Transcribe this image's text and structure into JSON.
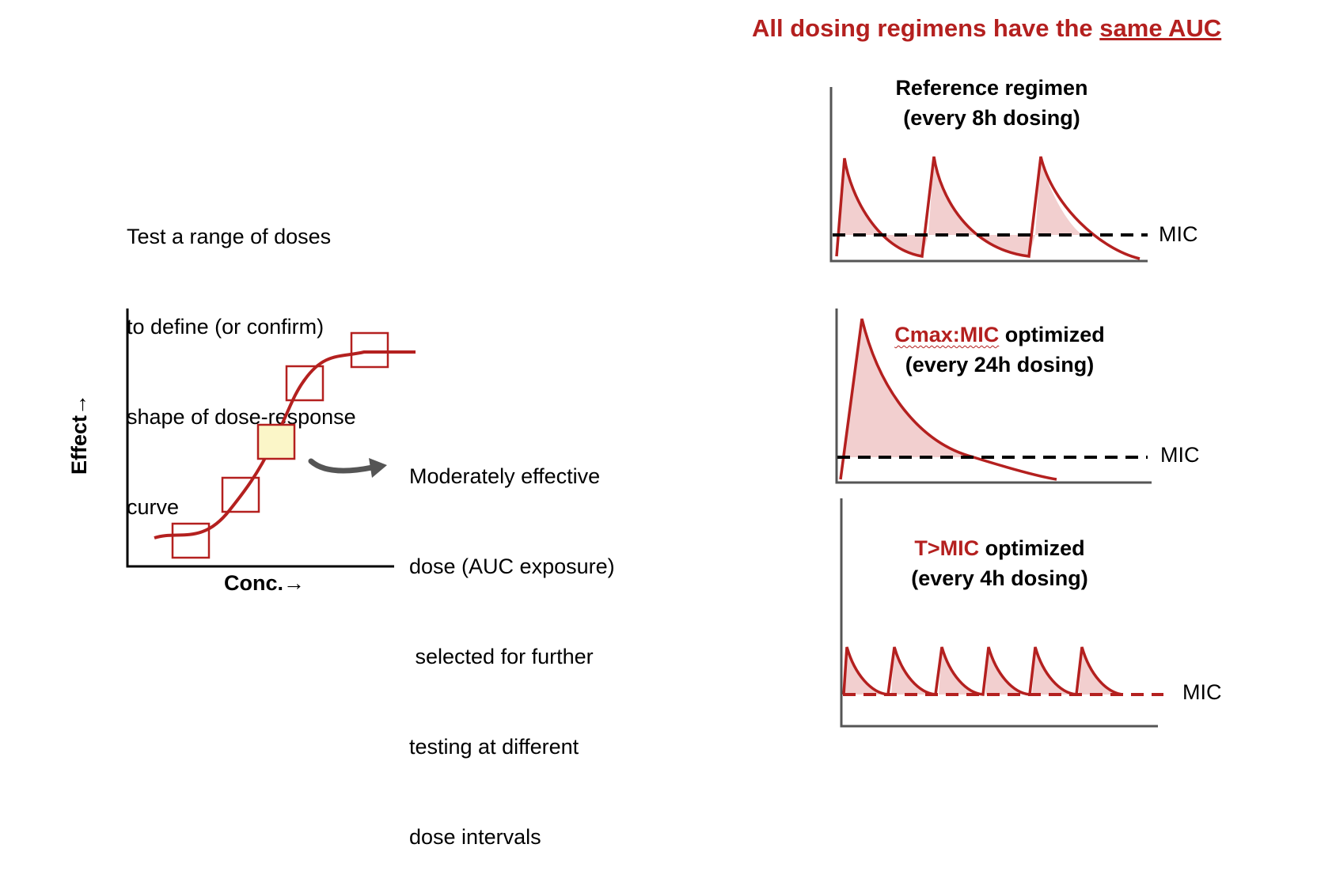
{
  "headline": {
    "prefix": "All dosing regimens have the ",
    "emphasis": "same AUC"
  },
  "left": {
    "instruction": [
      "Test a range of doses",
      "to define (or confirm)",
      "shape of dose-response",
      "curve"
    ],
    "y_axis_label": "Effect→",
    "x_axis_label": "Conc.→",
    "note": [
      "Moderately effective",
      "dose (AUC exposure)",
      " selected for further",
      "testing at different",
      "dose intervals"
    ]
  },
  "panels": [
    {
      "title_line1": "Reference regimen",
      "title_line2": "(every 8h dosing)",
      "mic_label": "MIC"
    },
    {
      "title_highlight": "Cmax:MIC",
      "title_rest": " optimized",
      "title_line2": "(every 24h dosing)",
      "mic_label": "MIC"
    },
    {
      "title_highlight": "T>MIC",
      "title_rest": " optimized",
      "title_line2": "(every 4h dosing)",
      "mic_label": "MIC"
    }
  ],
  "colors": {
    "accent": "#b4201f",
    "fill": "#f2cfcf",
    "highlight_box": "#fbf6c8",
    "arrow": "#555555"
  }
}
